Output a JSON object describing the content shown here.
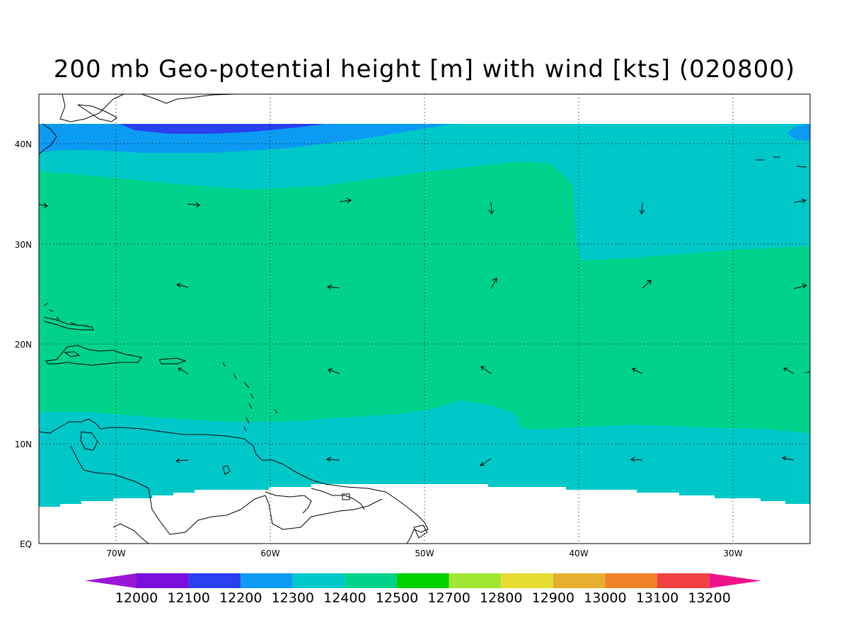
{
  "title": "200 mb Geo-potential height [m] with wind [kts] (020800)",
  "lat_labels": [
    "40N",
    "30N",
    "20N",
    "10N",
    "EQ"
  ],
  "lon_labels": [
    "70W",
    "60W",
    "50W",
    "40W",
    "30W"
  ],
  "colorbar": {
    "labels": [
      "12000",
      "12100",
      "12200",
      "12300",
      "12400",
      "12500",
      "12700",
      "12800",
      "12900",
      "13000",
      "13100",
      "13200"
    ],
    "colors": [
      "#9a17d8",
      "#7a0fdc",
      "#2a3ff0",
      "#0c9bf2",
      "#00c8c8",
      "#00d28c",
      "#00d200",
      "#a0e632",
      "#e6dc32",
      "#e6af2d",
      "#f08228",
      "#f04040",
      "#f0148c"
    ]
  },
  "field_colors": {
    "h12100": "#2a3ff0",
    "h12200": "#0c9bf2",
    "h12300": "#00c8c8",
    "h12400": "#00d28c",
    "no_data": "#ffffff"
  }
}
